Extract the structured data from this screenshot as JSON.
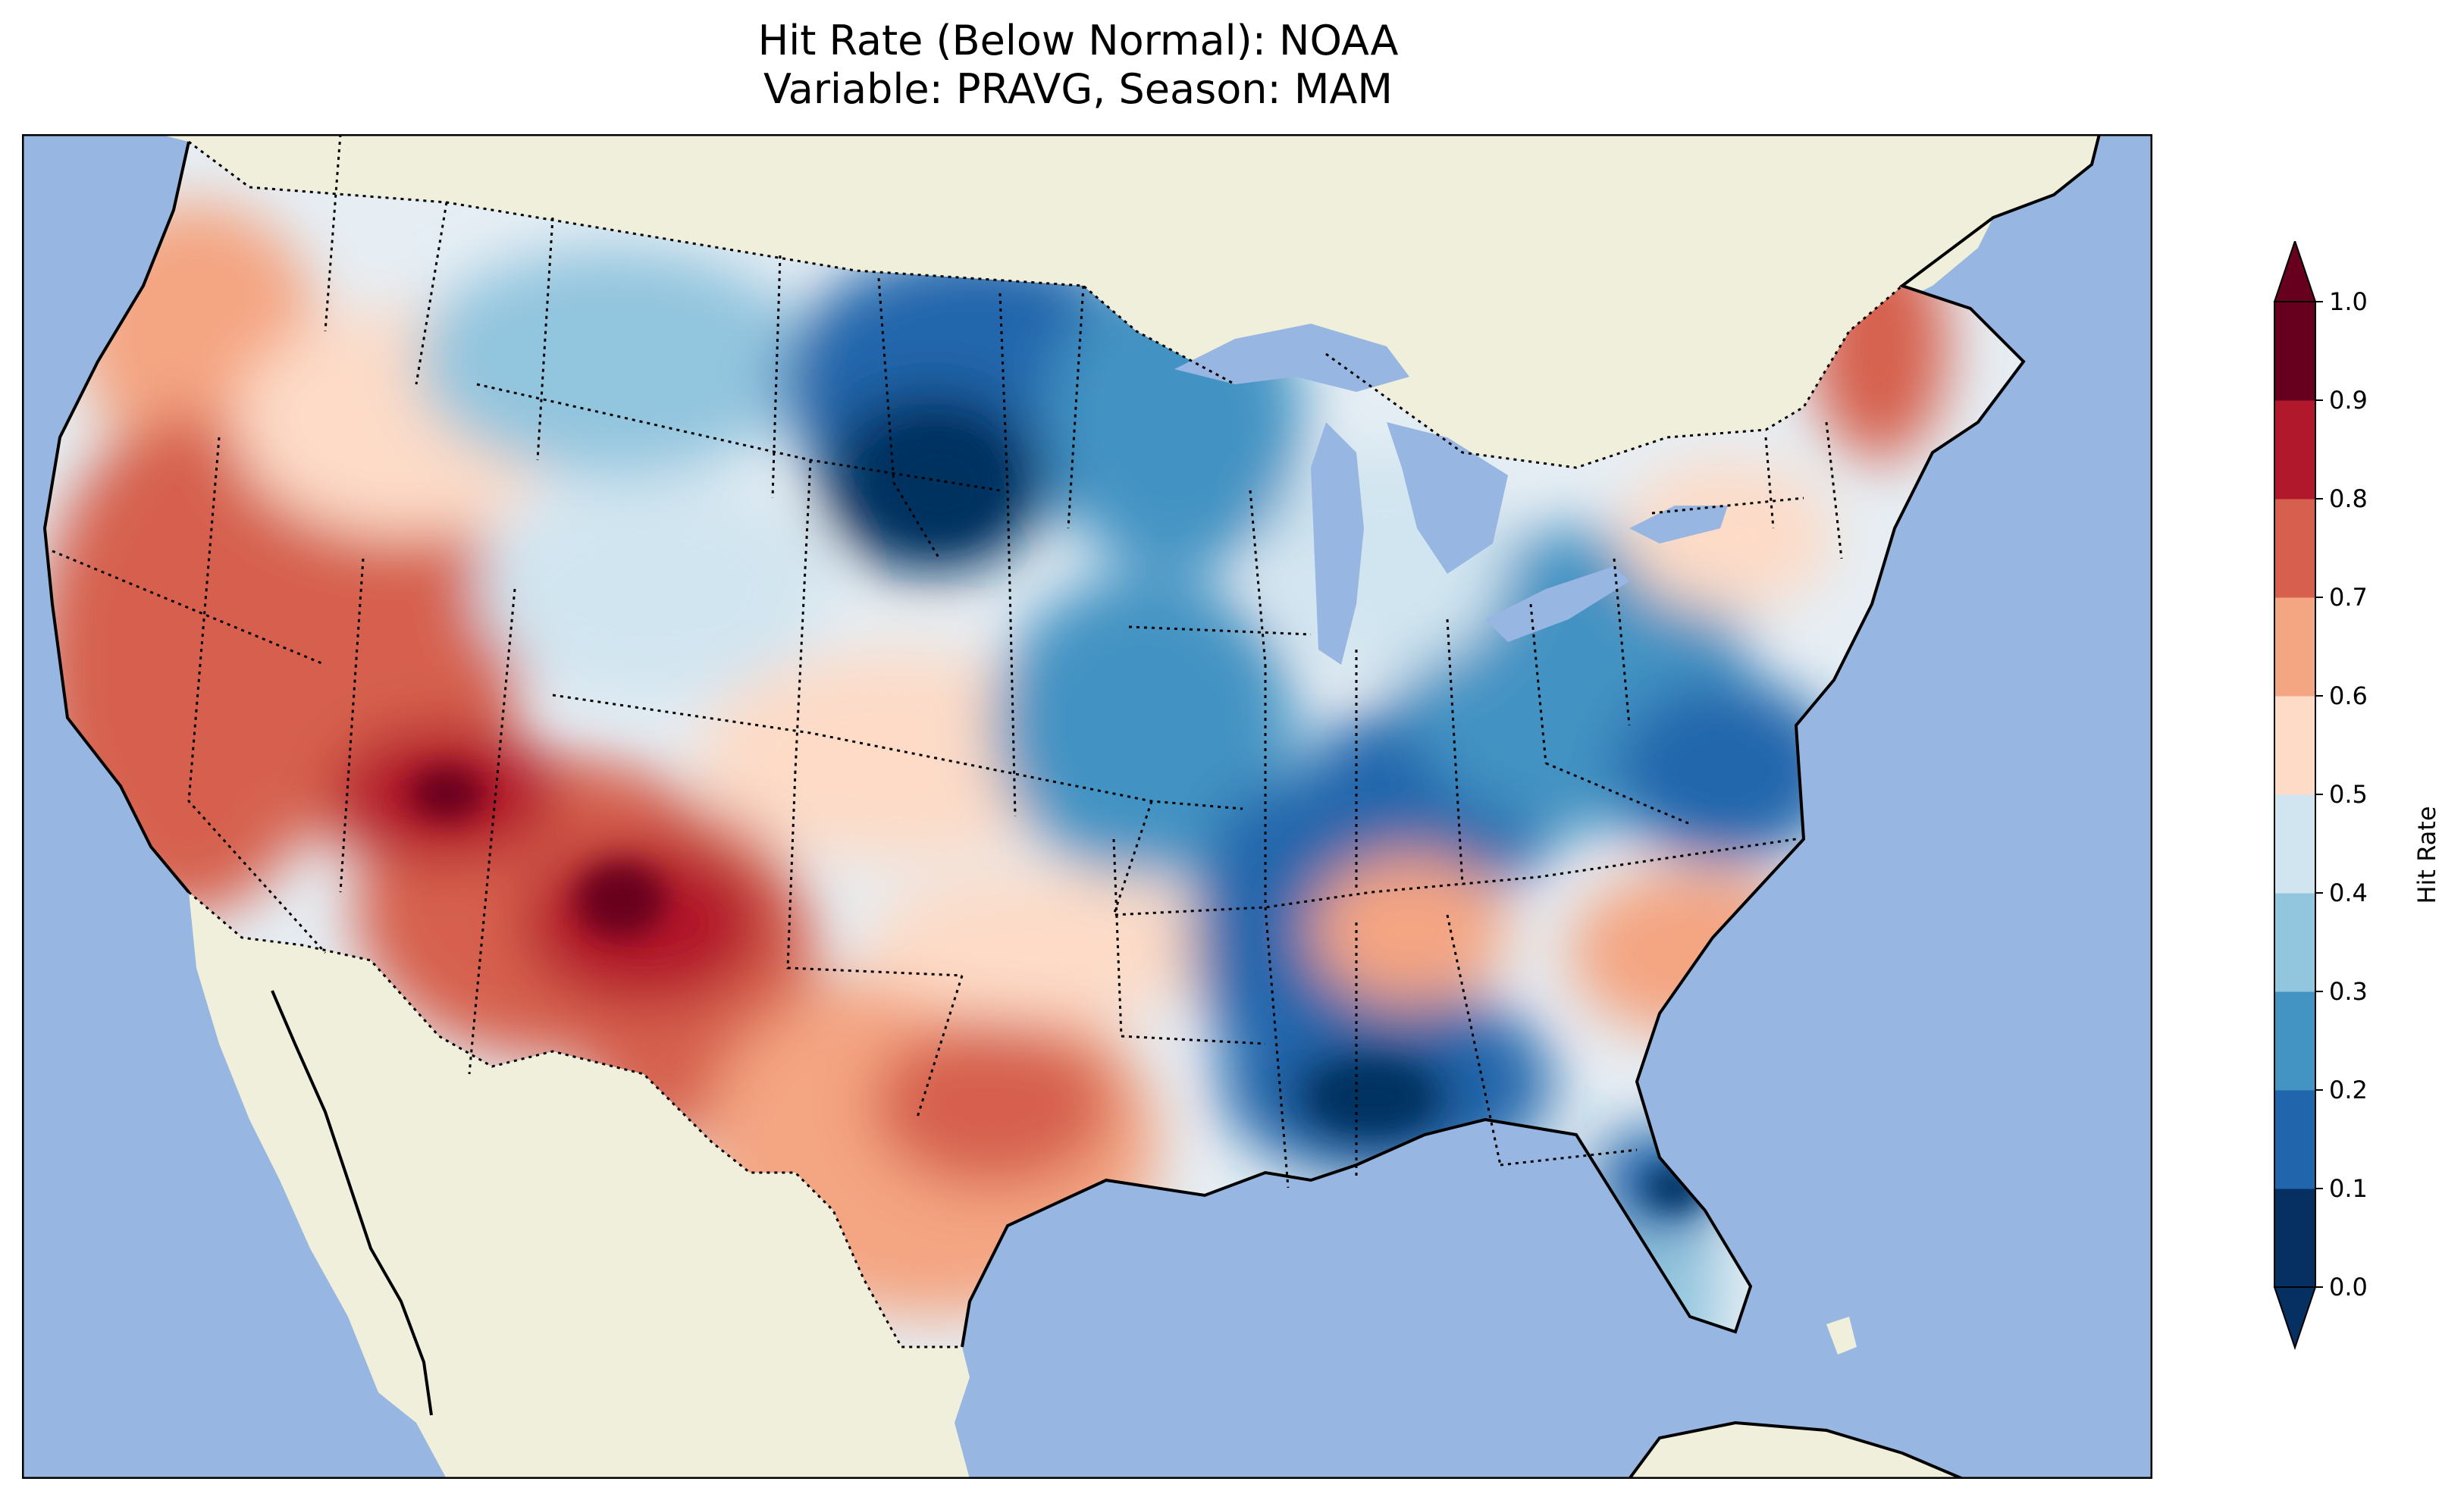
{
  "title": {
    "line1": "Hit Rate (Below Normal): NOAA",
    "line2": "Variable: PRAVG, Season: MAM"
  },
  "colors": {
    "ocean": "#97b6e1",
    "land": "#efefdb",
    "coast": "#000000"
  },
  "colorbar": {
    "label": "Hit Rate",
    "ticks": [
      "0.0",
      "0.1",
      "0.2",
      "0.3",
      "0.4",
      "0.5",
      "0.6",
      "0.7",
      "0.8",
      "0.9",
      "1.0"
    ],
    "bins": [
      {
        "range": "0.0-0.1",
        "color": "#053061"
      },
      {
        "range": "0.1-0.2",
        "color": "#2166ac"
      },
      {
        "range": "0.2-0.3",
        "color": "#4393c3"
      },
      {
        "range": "0.3-0.4",
        "color": "#92c5de"
      },
      {
        "range": "0.4-0.5",
        "color": "#d1e5f0"
      },
      {
        "range": "0.5-0.6",
        "color": "#fddbc7"
      },
      {
        "range": "0.6-0.7",
        "color": "#f4a582"
      },
      {
        "range": "0.7-0.8",
        "color": "#d6604d"
      },
      {
        "range": "0.8-0.9",
        "color": "#b2182b"
      },
      {
        "range": "0.9-1.0",
        "color": "#67001f"
      }
    ],
    "under_color": "#053061",
    "over_color": "#67001f"
  },
  "regions": [
    {
      "name": "Pacific Northwest coast",
      "value": 0.75
    },
    {
      "name": "California",
      "value": 0.75
    },
    {
      "name": "Nevada",
      "value": 0.72
    },
    {
      "name": "Southern Utah / Arizona",
      "value": 0.85
    },
    {
      "name": "New Mexico",
      "value": 0.85
    },
    {
      "name": "Montana",
      "value": 0.35
    },
    {
      "name": "North Dakota / Minnesota",
      "value": 0.15
    },
    {
      "name": "South Dakota",
      "value": 0.05
    },
    {
      "name": "Texas",
      "value": 0.65
    },
    {
      "name": "Kentucky / Tennessee",
      "value": 0.15
    },
    {
      "name": "Mississippi / Alabama",
      "value": 0.1
    },
    {
      "name": "Ohio / West Virginia",
      "value": 0.25
    },
    {
      "name": "Maine",
      "value": 0.72
    },
    {
      "name": "Florida",
      "value": 0.35
    }
  ]
}
